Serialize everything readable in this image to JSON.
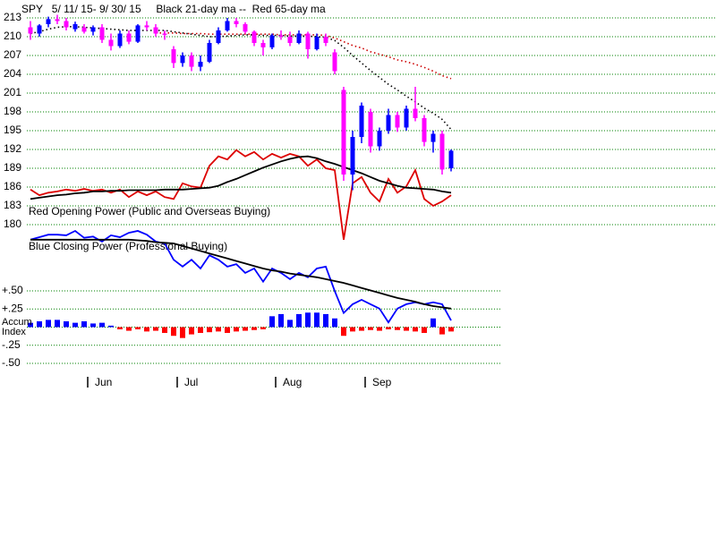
{
  "chart_data": {
    "type": "candlestick",
    "title": "SPY   5/ 11/ 15- 9/ 30/ 15     Black 21-day ma --  Red 65-day ma",
    "annotations": [
      "Red Opening Power (Public and Overseas Buying)",
      "Blue Closing Power (Professional Buying)"
    ],
    "categories": [
      null,
      null,
      null,
      null,
      null,
      null,
      null,
      "Jun",
      null,
      null,
      null,
      null,
      null,
      null,
      null,
      null,
      null,
      "Jul",
      null,
      null,
      null,
      null,
      null,
      null,
      null,
      null,
      null,
      null,
      "Aug",
      null,
      null,
      null,
      null,
      null,
      null,
      null,
      null,
      null,
      "Sep",
      null,
      null,
      null,
      null,
      null,
      null,
      null,
      null,
      null
    ],
    "open": [
      211.5,
      210.5,
      212,
      212.8,
      212.5,
      211.2,
      211.5,
      210.8,
      211.5,
      209.5,
      208.5,
      210.5,
      209.2,
      211.8,
      211.5,
      210.5,
      208,
      205.8,
      207,
      205.2,
      206,
      209,
      211,
      212.5,
      212,
      210.8,
      209,
      208.3,
      210.2,
      210,
      209,
      210.5,
      208,
      210,
      207.5,
      201.5,
      188,
      194,
      198,
      192.5,
      195,
      197.5,
      195.5,
      198.5,
      197,
      193.2,
      194.5,
      189
    ],
    "high": [
      212.5,
      212,
      213.2,
      213.5,
      213,
      212.4,
      212,
      211.8,
      212,
      210.5,
      211,
      211,
      212,
      212.5,
      212,
      211,
      208.5,
      207.5,
      207.5,
      207,
      209.5,
      211.5,
      213,
      213,
      212.3,
      211,
      209.5,
      210.5,
      211,
      210.8,
      211,
      210.8,
      210.5,
      210.5,
      208,
      202,
      195,
      199.5,
      198.5,
      195.5,
      198.5,
      198,
      199,
      202,
      197.5,
      195,
      195,
      192
    ],
    "low": [
      209.5,
      210,
      211.5,
      212,
      211,
      210.8,
      210.5,
      210.2,
      209,
      207.8,
      208.2,
      208.8,
      209,
      211,
      210,
      209.5,
      205,
      205.2,
      204.5,
      204.5,
      205.8,
      208.8,
      210.8,
      211.5,
      210.5,
      208.5,
      207,
      208,
      209.5,
      208.5,
      208.8,
      206.5,
      207.8,
      208.5,
      204,
      187,
      185.5,
      193,
      191.5,
      191.8,
      194.5,
      194.8,
      195,
      196.5,
      192.5,
      191.5,
      188,
      188.5
    ],
    "close": [
      210.5,
      211.8,
      212.8,
      212.5,
      211.5,
      212,
      210.8,
      211.5,
      209.5,
      208.5,
      210.5,
      209.2,
      211.8,
      211.5,
      210.5,
      210.3,
      205.8,
      207,
      205.2,
      206,
      209,
      211,
      212.5,
      212,
      210.8,
      209,
      208.3,
      210.2,
      210,
      209,
      210.5,
      208,
      210,
      209,
      204.5,
      188,
      194,
      199,
      192.5,
      195,
      197.5,
      195.5,
      198.5,
      197,
      193.2,
      194.5,
      188.8,
      191.8
    ],
    "up_color": "#0000ff",
    "down_color": "#ff00ff",
    "ylim": [
      180,
      213
    ],
    "yticks": [
      213,
      210,
      207,
      204,
      201,
      198,
      195,
      192,
      189,
      186,
      183,
      180
    ],
    "grid": true,
    "grid_color": "#008000",
    "series": [
      {
        "color": "#000000",
        "style": "dotted",
        "values": [
          210.5,
          210.8,
          211.2,
          211.5,
          211.6,
          211.6,
          211.5,
          211.4,
          211.3,
          211.2,
          211.1,
          211,
          211,
          211,
          211,
          211,
          210.8,
          210.6,
          210.4,
          210.2,
          210,
          210,
          210.1,
          210.2,
          210.3,
          210.3,
          210.2,
          210.2,
          210.2,
          210.1,
          210.1,
          210.1,
          210,
          209.9,
          209.4,
          208.3,
          207,
          205.8,
          204.6,
          203.5,
          202.4,
          201.5,
          200.5,
          199.6,
          198.6,
          197.8,
          196.8,
          195.2
        ]
      },
      {
        "color": "#cc0000",
        "style": "dotted",
        "values": [
          null,
          null,
          null,
          null,
          null,
          null,
          null,
          null,
          null,
          null,
          null,
          null,
          null,
          null,
          210.6,
          210.6,
          210.6,
          210.5,
          210.5,
          210.5,
          210.4,
          210.4,
          210.4,
          210.4,
          210.4,
          210.4,
          210.4,
          210.4,
          210.3,
          210.3,
          210.3,
          210.3,
          210.3,
          210.2,
          209.8,
          209.2,
          208.6,
          208.2,
          207.6,
          207.2,
          206.8,
          206.3,
          206,
          205.6,
          205.1,
          204.5,
          203.8,
          203.3
        ]
      },
      {
        "color": "#dd0000",
        "style": "solid",
        "values": [
          185.6,
          184.7,
          185.1,
          185.3,
          185.6,
          185.4,
          185.7,
          185.4,
          185.6,
          185.1,
          185.6,
          184.4,
          185.3,
          184.7,
          185.3,
          184.4,
          184.1,
          186.6,
          186.1,
          185.9,
          189.4,
          190.9,
          190.4,
          191.9,
          190.9,
          191.6,
          190.4,
          191.3,
          190.7,
          191.3,
          190.9,
          189.4,
          190.4,
          189,
          188.7,
          177.6,
          186.6,
          187.6,
          185.1,
          183.7,
          187.3,
          185.1,
          186.1,
          188.7,
          184.1,
          183,
          183.7,
          184.7
        ]
      },
      {
        "color": "#000000",
        "style": "solid",
        "values": [
          184.1,
          184.3,
          184.5,
          184.7,
          184.8,
          185,
          185.1,
          185.3,
          185.3,
          185.4,
          185.4,
          185.5,
          185.5,
          185.5,
          185.5,
          185.6,
          185.6,
          185.6,
          185.7,
          185.8,
          185.9,
          186.2,
          186.8,
          187.3,
          187.9,
          188.5,
          189.1,
          189.6,
          190.1,
          190.5,
          190.8,
          190.9,
          190.6,
          190.1,
          189.7,
          189.2,
          188.7,
          188.2,
          187.6,
          187,
          186.6,
          186.2,
          185.9,
          185.8,
          185.7,
          185.6,
          185.3,
          185.1
        ]
      },
      {
        "color": "#0000ff",
        "style": "solid",
        "values": [
          177.6,
          178,
          178.4,
          178.4,
          178.3,
          179,
          177.9,
          178.1,
          177.3,
          178.3,
          178,
          178.7,
          179,
          178.4,
          177.3,
          177,
          174.4,
          173.3,
          174.4,
          173,
          175.1,
          174.4,
          173.3,
          173.7,
          172.3,
          173,
          170.9,
          173,
          172.3,
          171.3,
          172.3,
          171.6,
          173,
          173.3,
          169.4,
          165.9,
          167.3,
          168,
          167.3,
          166.6,
          164.4,
          166.6,
          167.3,
          167.6,
          167.3,
          167.6,
          167.3,
          164.7
        ]
      },
      {
        "color": "#000000",
        "style": "solid",
        "values": [
          177.6,
          177.6,
          177.6,
          177.6,
          177.6,
          177.6,
          177.6,
          177.6,
          177.6,
          177.6,
          177.6,
          177.6,
          177.5,
          177.4,
          177.2,
          177.1,
          177,
          176.6,
          176.2,
          175.8,
          175.4,
          175,
          174.6,
          174.2,
          173.8,
          173.4,
          173,
          172.7,
          172.5,
          172.2,
          172,
          171.8,
          171.6,
          171.3,
          171,
          170.7,
          170.3,
          169.9,
          169.5,
          169.1,
          168.7,
          168.3,
          168,
          167.7,
          167.3,
          167,
          166.8,
          166.6
        ]
      }
    ],
    "accum": {
      "axis": "y2",
      "type": "bar",
      "pos_color": "#0000ff",
      "neg_color": "#ff0000",
      "values": [
        0.06,
        0.08,
        0.1,
        0.1,
        0.08,
        0.06,
        0.08,
        0.05,
        0.06,
        0.02,
        -0.03,
        -0.05,
        -0.03,
        -0.06,
        -0.05,
        -0.08,
        -0.12,
        -0.15,
        -0.1,
        -0.08,
        -0.07,
        -0.06,
        -0.08,
        -0.06,
        -0.05,
        -0.04,
        -0.03,
        0.15,
        0.18,
        0.1,
        0.18,
        0.2,
        0.2,
        0.18,
        0.12,
        -0.12,
        -0.06,
        -0.05,
        -0.04,
        -0.05,
        -0.03,
        -0.04,
        -0.05,
        -0.06,
        -0.08,
        0.12,
        -0.1,
        -0.06
      ]
    },
    "y2lim": [
      -0.5,
      0.5
    ],
    "y2ticks": [
      {
        "value": 0.5,
        "label": "+.50"
      },
      {
        "value": 0.25,
        "label": "+.25"
      },
      {
        "value": 0,
        "label": "Accum Index"
      },
      {
        "value": -0.25,
        "label": "-.25"
      },
      {
        "value": -0.5,
        "label": "-.50"
      }
    ]
  }
}
